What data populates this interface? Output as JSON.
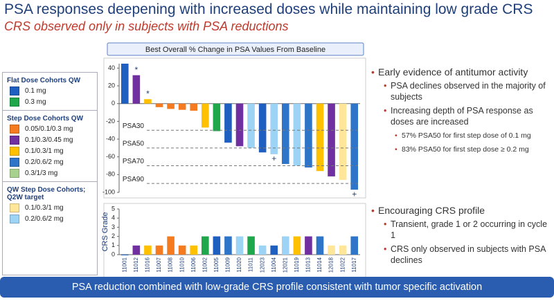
{
  "title": "PSA responses deepening with increased doses while maintaining low grade CRS",
  "subtitle": "CRS observed only in subjects with PSA reductions",
  "legend": [
    {
      "heading": "Flat Dose Cohorts QW",
      "items": [
        {
          "label": "0.1 mg",
          "color": "#1f5fbf"
        },
        {
          "label": "0.3 mg",
          "color": "#1ea84b"
        }
      ]
    },
    {
      "heading": "Step Dose Cohorts QW",
      "items": [
        {
          "label": "0.05/0.1/0.3 mg",
          "color": "#f47b20"
        },
        {
          "label": "0.1/0.3/0.45 mg",
          "color": "#7030a0"
        },
        {
          "label": "0.1/0.3/1 mg",
          "color": "#ffc000"
        },
        {
          "label": "0.2/0.6/2 mg",
          "color": "#2e74c9"
        },
        {
          "label": "0.3/1/3 mg",
          "color": "#a9d18e"
        }
      ]
    },
    {
      "heading": "QW Step Dose Cohorts; Q2W target",
      "items": [
        {
          "label": "0.1/0.3/1 mg",
          "color": "#ffe699"
        },
        {
          "label": "0.2/0.6/2 mg",
          "color": "#9dd3f5"
        }
      ]
    }
  ],
  "bullets_top": [
    {
      "text": "Early evidence of antitumor activity",
      "level": 0
    },
    {
      "text": "PSA declines observed in the majority of subjects",
      "level": 1
    },
    {
      "text": "Increasing depth of PSA response as doses are increased",
      "level": 1
    },
    {
      "text": "57% PSA50 for first step dose of 0.1 mg",
      "level": 2
    },
    {
      "text": "83% PSA50 for first step dose ≥ 0.2 mg",
      "level": 2
    }
  ],
  "bullets_bottom": [
    {
      "text": "Encouraging CRS profile",
      "level": 0
    },
    {
      "text": "Transient, grade 1 or 2 occurring in cycle 1",
      "level": 1
    },
    {
      "text": "CRS only observed in subjects with PSA declines",
      "level": 1
    }
  ],
  "footer": "PSA reduction combined with low-grade CRS profile consistent with tumor specific activation",
  "chart_data": [
    {
      "type": "bar",
      "title": "Best Overall % Change in PSA Values From Baseline",
      "values": [
        45,
        32,
        5,
        -4,
        -6,
        -7,
        -8,
        -27,
        -31,
        -44,
        -48,
        -50,
        -55,
        -57,
        -68,
        -70,
        -72,
        -76,
        -82,
        -86,
        -97
      ],
      "colors": [
        "#1f5fbf",
        "#7030a0",
        "#ffc000",
        "#f47b20",
        "#f47b20",
        "#f47b20",
        "#f47b20",
        "#ffc000",
        "#1ea84b",
        "#1f5fbf",
        "#7030a0",
        "#9dd3f5",
        "#1f5fbf",
        "#9dd3f5",
        "#2e74c9",
        "#9dd3f5",
        "#2e74c9",
        "#ffc000",
        "#7030a0",
        "#ffe699",
        "#2e74c9"
      ],
      "ylim": [
        -100,
        45
      ],
      "yticks": [
        40,
        20,
        0,
        -20,
        -40,
        -60,
        -80,
        -100
      ],
      "reference_lines": [
        {
          "label": "PSA30",
          "value": -30
        },
        {
          "label": "PSA50",
          "value": -50
        },
        {
          "label": "PSA70",
          "value": -70
        },
        {
          "label": "PSA90",
          "value": -90
        }
      ],
      "annotations": [
        {
          "text": "*",
          "index": 1
        },
        {
          "text": "*",
          "index": 2
        },
        {
          "text": "+",
          "index": 13
        },
        {
          "text": "+",
          "index": 20
        }
      ]
    },
    {
      "type": "bar",
      "ylabel": "CRS Grade",
      "categories": [
        "11001",
        "11012",
        "11016",
        "11007",
        "11008",
        "11010",
        "11006",
        "11002",
        "11005",
        "11009",
        "11020",
        "11011",
        "12023",
        "11004",
        "12021",
        "11019",
        "11013",
        "11014",
        "12018",
        "11022",
        "11017"
      ],
      "values": [
        0,
        1,
        1,
        1,
        2,
        1,
        1,
        2,
        2,
        2,
        2,
        2,
        1,
        1,
        2,
        2,
        2,
        2,
        1,
        1,
        2
      ],
      "colors": [
        "#1f5fbf",
        "#7030a0",
        "#ffc000",
        "#f47b20",
        "#f47b20",
        "#f47b20",
        "#ffc000",
        "#1ea84b",
        "#1f5fbf",
        "#2e74c9",
        "#9dd3f5",
        "#1ea84b",
        "#9dd3f5",
        "#1f5fbf",
        "#9dd3f5",
        "#ffc000",
        "#7030a0",
        "#2e74c9",
        "#ffe699",
        "#ffe699",
        "#2e74c9"
      ],
      "ylim": [
        0,
        5
      ],
      "yticks": [
        0,
        1,
        2,
        3,
        4,
        5
      ]
    }
  ]
}
